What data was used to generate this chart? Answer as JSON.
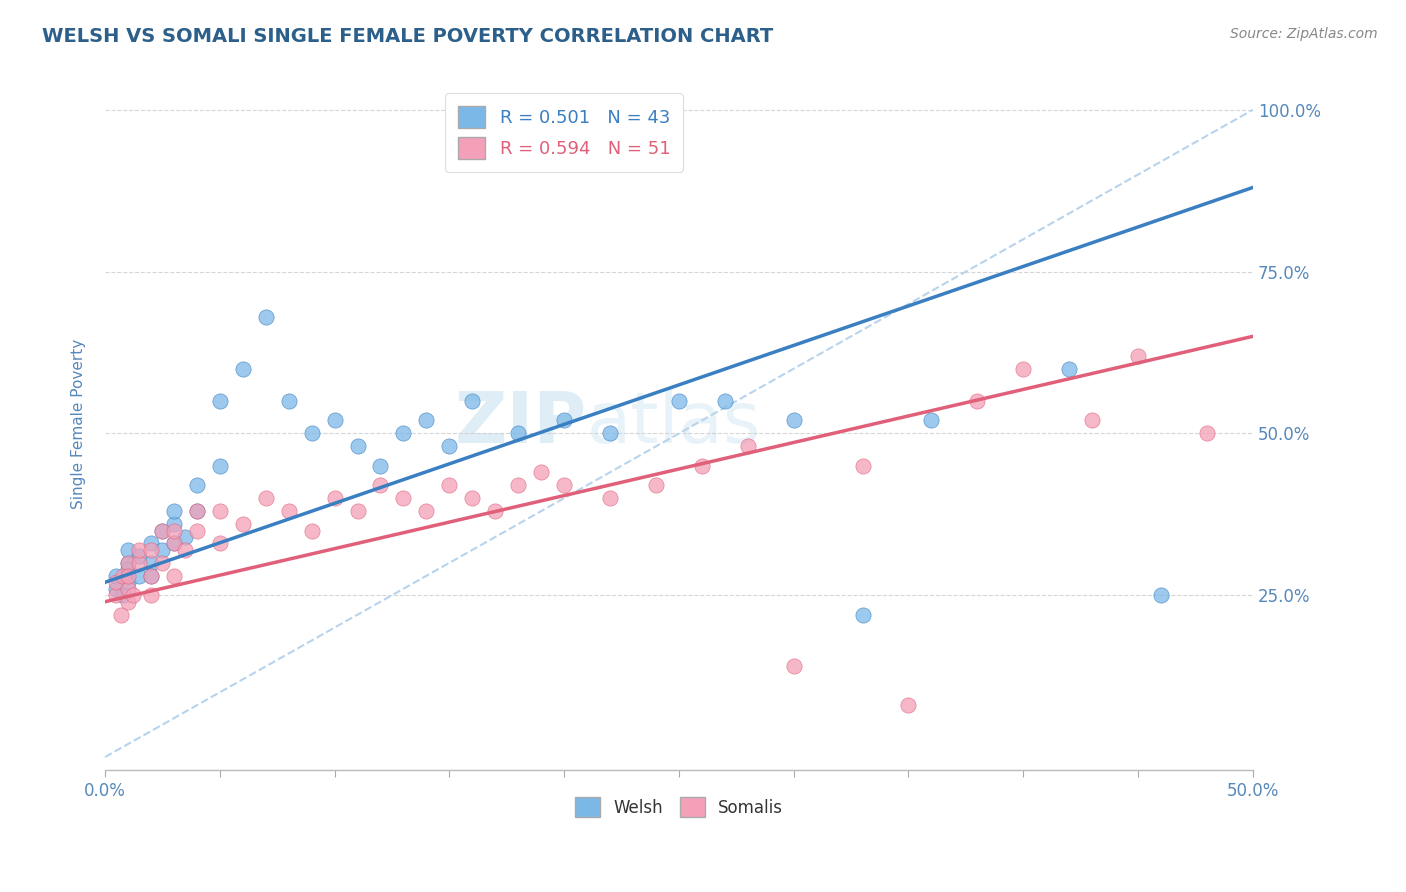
{
  "title": "WELSH VS SOMALI SINGLE FEMALE POVERTY CORRELATION CHART",
  "source": "Source: ZipAtlas.com",
  "xlabel": "",
  "ylabel": "Single Female Poverty",
  "xlim": [
    0.0,
    0.5
  ],
  "ylim": [
    -0.02,
    1.05
  ],
  "xticks": [
    0.0,
    0.05,
    0.1,
    0.15,
    0.2,
    0.25,
    0.3,
    0.35,
    0.4,
    0.45,
    0.5
  ],
  "ytick_positions": [
    0.25,
    0.5,
    0.75,
    1.0
  ],
  "ytick_labels": [
    "25.0%",
    "50.0%",
    "75.0%",
    "100.0%"
  ],
  "xtick_labels": [
    "0.0%",
    "",
    "",
    "",
    "",
    "",
    "",
    "",
    "",
    "",
    "50.0%"
  ],
  "welsh_R": 0.501,
  "welsh_N": 43,
  "somali_R": 0.594,
  "somali_N": 51,
  "welsh_color": "#7bb8e8",
  "somali_color": "#f4a0b8",
  "welsh_line_color": "#3a7fc1",
  "somali_line_color": "#e0607a",
  "ref_line_color": "#b8d4ec",
  "background_color": "#ffffff",
  "grid_color": "#cccccc",
  "title_color": "#2c5f8a",
  "axis_color": "#5588bb",
  "watermark_zip": "ZIP",
  "watermark_atlas": "atlas",
  "welsh_scatter_x": [
    0.005,
    0.005,
    0.008,
    0.01,
    0.01,
    0.01,
    0.01,
    0.015,
    0.015,
    0.02,
    0.02,
    0.02,
    0.025,
    0.025,
    0.03,
    0.03,
    0.03,
    0.035,
    0.04,
    0.04,
    0.05,
    0.05,
    0.06,
    0.07,
    0.08,
    0.09,
    0.1,
    0.11,
    0.12,
    0.13,
    0.14,
    0.15,
    0.16,
    0.18,
    0.2,
    0.22,
    0.25,
    0.27,
    0.3,
    0.33,
    0.36,
    0.42,
    0.46
  ],
  "welsh_scatter_y": [
    0.26,
    0.28,
    0.25,
    0.3,
    0.27,
    0.32,
    0.29,
    0.28,
    0.31,
    0.3,
    0.33,
    0.28,
    0.35,
    0.32,
    0.33,
    0.36,
    0.38,
    0.34,
    0.42,
    0.38,
    0.45,
    0.55,
    0.6,
    0.68,
    0.55,
    0.5,
    0.52,
    0.48,
    0.45,
    0.5,
    0.52,
    0.48,
    0.55,
    0.5,
    0.52,
    0.5,
    0.55,
    0.55,
    0.52,
    0.22,
    0.52,
    0.6,
    0.25
  ],
  "somali_scatter_x": [
    0.005,
    0.005,
    0.007,
    0.008,
    0.01,
    0.01,
    0.01,
    0.01,
    0.012,
    0.015,
    0.015,
    0.02,
    0.02,
    0.02,
    0.025,
    0.025,
    0.03,
    0.03,
    0.03,
    0.035,
    0.04,
    0.04,
    0.05,
    0.05,
    0.06,
    0.07,
    0.08,
    0.09,
    0.1,
    0.11,
    0.12,
    0.13,
    0.14,
    0.15,
    0.16,
    0.17,
    0.18,
    0.19,
    0.2,
    0.22,
    0.24,
    0.26,
    0.28,
    0.3,
    0.33,
    0.35,
    0.38,
    0.4,
    0.43,
    0.45,
    0.48
  ],
  "somali_scatter_y": [
    0.25,
    0.27,
    0.22,
    0.28,
    0.24,
    0.26,
    0.3,
    0.28,
    0.25,
    0.3,
    0.32,
    0.28,
    0.25,
    0.32,
    0.3,
    0.35,
    0.28,
    0.33,
    0.35,
    0.32,
    0.35,
    0.38,
    0.33,
    0.38,
    0.36,
    0.4,
    0.38,
    0.35,
    0.4,
    0.38,
    0.42,
    0.4,
    0.38,
    0.42,
    0.4,
    0.38,
    0.42,
    0.44,
    0.42,
    0.4,
    0.42,
    0.45,
    0.48,
    0.14,
    0.45,
    0.08,
    0.55,
    0.6,
    0.52,
    0.62,
    0.5
  ],
  "welsh_line_x0": 0.0,
  "welsh_line_y0": 0.27,
  "welsh_line_x1": 0.5,
  "welsh_line_y1": 0.88,
  "somali_line_x0": 0.0,
  "somali_line_y0": 0.24,
  "somali_line_x1": 0.5,
  "somali_line_y1": 0.65
}
